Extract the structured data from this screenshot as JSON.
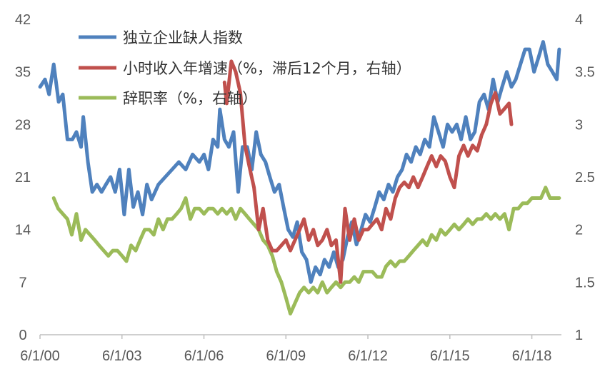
{
  "chart_data": {
    "type": "line",
    "x_labels": [
      "6/1/00",
      "6/1/03",
      "6/1/06",
      "6/1/09",
      "6/1/12",
      "6/1/15",
      "6/1/18"
    ],
    "x_label_dates": [
      2000.417,
      2003.417,
      2006.417,
      2009.417,
      2012.417,
      2015.417,
      2018.417
    ],
    "xlim": [
      2000.417,
      2019.5
    ],
    "y_left": {
      "ticks": [
        "0",
        "7",
        "14",
        "21",
        "28",
        "35",
        "42"
      ],
      "lim": [
        0,
        42
      ]
    },
    "y_right": {
      "ticks": [
        "1",
        "1.5",
        "2",
        "2.5",
        "3",
        "3.5",
        "4"
      ],
      "lim": [
        1,
        4
      ]
    },
    "grid": false,
    "legend_position": "top-left",
    "series": [
      {
        "name": "独立企业缺人指数",
        "color": "#4f81bd",
        "axis": "left",
        "points": [
          [
            2000.42,
            33
          ],
          [
            2000.6,
            34
          ],
          [
            2000.75,
            32
          ],
          [
            2000.92,
            36
          ],
          [
            2001.1,
            31
          ],
          [
            2001.25,
            32
          ],
          [
            2001.42,
            26
          ],
          [
            2001.6,
            26
          ],
          [
            2001.75,
            27
          ],
          [
            2001.92,
            25
          ],
          [
            2002.0,
            29
          ],
          [
            2002.17,
            23
          ],
          [
            2002.33,
            19
          ],
          [
            2002.5,
            20
          ],
          [
            2002.67,
            19
          ],
          [
            2002.83,
            20
          ],
          [
            2003.0,
            21
          ],
          [
            2003.17,
            19
          ],
          [
            2003.33,
            22
          ],
          [
            2003.5,
            16
          ],
          [
            2003.67,
            22
          ],
          [
            2003.83,
            17
          ],
          [
            2004.0,
            19
          ],
          [
            2004.17,
            16
          ],
          [
            2004.33,
            20
          ],
          [
            2004.5,
            18
          ],
          [
            2004.75,
            20
          ],
          [
            2005.0,
            21
          ],
          [
            2005.25,
            22
          ],
          [
            2005.5,
            23
          ],
          [
            2005.75,
            22
          ],
          [
            2006.0,
            24
          ],
          [
            2006.25,
            23
          ],
          [
            2006.42,
            24
          ],
          [
            2006.58,
            22
          ],
          [
            2006.75,
            26
          ],
          [
            2006.92,
            25
          ],
          [
            2007.0,
            30
          ],
          [
            2007.17,
            26
          ],
          [
            2007.33,
            25
          ],
          [
            2007.5,
            27
          ],
          [
            2007.67,
            19
          ],
          [
            2007.83,
            25
          ],
          [
            2008.0,
            25
          ],
          [
            2008.17,
            22
          ],
          [
            2008.33,
            27
          ],
          [
            2008.5,
            24
          ],
          [
            2008.67,
            23
          ],
          [
            2008.83,
            21
          ],
          [
            2009.0,
            19
          ],
          [
            2009.17,
            20
          ],
          [
            2009.33,
            17
          ],
          [
            2009.5,
            14
          ],
          [
            2009.67,
            13
          ],
          [
            2009.83,
            15
          ],
          [
            2010.0,
            11
          ],
          [
            2010.17,
            10
          ],
          [
            2010.33,
            7
          ],
          [
            2010.5,
            9
          ],
          [
            2010.67,
            8
          ],
          [
            2010.83,
            10
          ],
          [
            2011.0,
            9
          ],
          [
            2011.17,
            11
          ],
          [
            2011.33,
            9
          ],
          [
            2011.5,
            10
          ],
          [
            2011.67,
            13
          ],
          [
            2011.83,
            15
          ],
          [
            2012.0,
            12
          ],
          [
            2012.17,
            14
          ],
          [
            2012.33,
            16
          ],
          [
            2012.5,
            15
          ],
          [
            2012.67,
            17
          ],
          [
            2012.83,
            19
          ],
          [
            2013.0,
            18
          ],
          [
            2013.17,
            20
          ],
          [
            2013.33,
            19
          ],
          [
            2013.5,
            21
          ],
          [
            2013.67,
            22
          ],
          [
            2013.83,
            24
          ],
          [
            2014.0,
            23
          ],
          [
            2014.17,
            25
          ],
          [
            2014.33,
            24
          ],
          [
            2014.5,
            26
          ],
          [
            2014.67,
            25
          ],
          [
            2014.83,
            29
          ],
          [
            2015.0,
            27
          ],
          [
            2015.17,
            25
          ],
          [
            2015.33,
            28
          ],
          [
            2015.5,
            27
          ],
          [
            2015.67,
            28
          ],
          [
            2015.83,
            26
          ],
          [
            2016.0,
            29
          ],
          [
            2016.17,
            26
          ],
          [
            2016.33,
            27
          ],
          [
            2016.5,
            31
          ],
          [
            2016.67,
            32
          ],
          [
            2016.83,
            30
          ],
          [
            2017.0,
            34
          ],
          [
            2017.17,
            31
          ],
          [
            2017.33,
            33
          ],
          [
            2017.5,
            35
          ],
          [
            2017.67,
            33
          ],
          [
            2017.83,
            34
          ],
          [
            2018.0,
            36
          ],
          [
            2018.17,
            38
          ],
          [
            2018.33,
            38
          ],
          [
            2018.5,
            35
          ],
          [
            2018.67,
            37
          ],
          [
            2018.83,
            39
          ],
          [
            2019.0,
            36
          ],
          [
            2019.17,
            35
          ],
          [
            2019.33,
            34
          ],
          [
            2019.42,
            38
          ]
        ]
      },
      {
        "name": "小时收入年增速（%，滞后12个月，右轴）",
        "color": "#c0504d",
        "axis": "right",
        "points": [
          [
            2007.17,
            3.4
          ],
          [
            2007.25,
            3.2
          ],
          [
            2007.42,
            3.6
          ],
          [
            2007.58,
            3.5
          ],
          [
            2007.75,
            3.3
          ],
          [
            2007.92,
            2.8
          ],
          [
            2008.08,
            2.6
          ],
          [
            2008.25,
            2.4
          ],
          [
            2008.42,
            2.0
          ],
          [
            2008.58,
            2.2
          ],
          [
            2008.75,
            1.9
          ],
          [
            2008.92,
            1.8
          ],
          [
            2009.08,
            1.8
          ],
          [
            2009.25,
            1.85
          ],
          [
            2009.42,
            1.9
          ],
          [
            2009.58,
            1.8
          ],
          [
            2009.75,
            1.9
          ],
          [
            2009.92,
            2.0
          ],
          [
            2010.08,
            2.1
          ],
          [
            2010.25,
            1.9
          ],
          [
            2010.42,
            2.0
          ],
          [
            2010.58,
            1.85
          ],
          [
            2010.75,
            1.9
          ],
          [
            2010.92,
            2.0
          ],
          [
            2011.08,
            1.85
          ],
          [
            2011.25,
            1.9
          ],
          [
            2011.42,
            1.5
          ],
          [
            2011.58,
            2.2
          ],
          [
            2011.75,
            1.9
          ],
          [
            2011.92,
            2.1
          ],
          [
            2012.08,
            1.9
          ],
          [
            2012.25,
            2.0
          ],
          [
            2012.42,
            2.0
          ],
          [
            2012.58,
            2.05
          ],
          [
            2012.75,
            2.1
          ],
          [
            2012.92,
            2.0
          ],
          [
            2013.08,
            2.2
          ],
          [
            2013.25,
            2.1
          ],
          [
            2013.42,
            2.3
          ],
          [
            2013.58,
            2.4
          ],
          [
            2013.75,
            2.45
          ],
          [
            2013.92,
            2.4
          ],
          [
            2014.08,
            2.5
          ],
          [
            2014.25,
            2.4
          ],
          [
            2014.42,
            2.5
          ],
          [
            2014.58,
            2.6
          ],
          [
            2014.75,
            2.7
          ],
          [
            2014.92,
            2.6
          ],
          [
            2015.08,
            2.7
          ],
          [
            2015.25,
            2.65
          ],
          [
            2015.42,
            2.5
          ],
          [
            2015.58,
            2.4
          ],
          [
            2015.75,
            2.7
          ],
          [
            2015.92,
            2.8
          ],
          [
            2016.08,
            2.7
          ],
          [
            2016.25,
            2.8
          ],
          [
            2016.42,
            2.75
          ],
          [
            2016.58,
            2.9
          ],
          [
            2016.75,
            3.0
          ],
          [
            2016.92,
            3.2
          ],
          [
            2017.08,
            3.3
          ],
          [
            2017.25,
            3.1
          ],
          [
            2017.42,
            3.15
          ],
          [
            2017.58,
            3.2
          ],
          [
            2017.67,
            3.0
          ]
        ]
      },
      {
        "name": "辞职率（%，右轴）",
        "color": "#9bbb59",
        "axis": "right",
        "points": [
          [
            2000.92,
            2.3
          ],
          [
            2001.08,
            2.2
          ],
          [
            2001.25,
            2.15
          ],
          [
            2001.42,
            2.1
          ],
          [
            2001.58,
            1.95
          ],
          [
            2001.75,
            2.15
          ],
          [
            2001.92,
            1.9
          ],
          [
            2002.08,
            2.0
          ],
          [
            2002.25,
            1.95
          ],
          [
            2002.42,
            1.9
          ],
          [
            2002.58,
            1.85
          ],
          [
            2002.75,
            1.8
          ],
          [
            2002.92,
            1.75
          ],
          [
            2003.08,
            1.8
          ],
          [
            2003.25,
            1.8
          ],
          [
            2003.42,
            1.75
          ],
          [
            2003.58,
            1.7
          ],
          [
            2003.75,
            1.85
          ],
          [
            2003.92,
            1.8
          ],
          [
            2004.08,
            1.9
          ],
          [
            2004.25,
            2.0
          ],
          [
            2004.42,
            2.0
          ],
          [
            2004.58,
            1.95
          ],
          [
            2004.75,
            2.1
          ],
          [
            2004.92,
            2.0
          ],
          [
            2005.08,
            2.1
          ],
          [
            2005.25,
            2.1
          ],
          [
            2005.42,
            2.15
          ],
          [
            2005.58,
            2.2
          ],
          [
            2005.75,
            2.3
          ],
          [
            2005.92,
            2.1
          ],
          [
            2006.08,
            2.2
          ],
          [
            2006.25,
            2.2
          ],
          [
            2006.42,
            2.15
          ],
          [
            2006.58,
            2.2
          ],
          [
            2006.75,
            2.2
          ],
          [
            2006.92,
            2.15
          ],
          [
            2007.08,
            2.2
          ],
          [
            2007.25,
            2.15
          ],
          [
            2007.42,
            2.2
          ],
          [
            2007.58,
            2.1
          ],
          [
            2007.75,
            2.2
          ],
          [
            2007.92,
            2.15
          ],
          [
            2008.08,
            2.1
          ],
          [
            2008.25,
            2.05
          ],
          [
            2008.42,
            2.0
          ],
          [
            2008.58,
            1.9
          ],
          [
            2008.75,
            1.85
          ],
          [
            2008.92,
            1.75
          ],
          [
            2009.08,
            1.6
          ],
          [
            2009.25,
            1.5
          ],
          [
            2009.42,
            1.35
          ],
          [
            2009.58,
            1.2
          ],
          [
            2009.75,
            1.3
          ],
          [
            2009.92,
            1.4
          ],
          [
            2010.08,
            1.45
          ],
          [
            2010.25,
            1.4
          ],
          [
            2010.42,
            1.45
          ],
          [
            2010.58,
            1.4
          ],
          [
            2010.75,
            1.5
          ],
          [
            2010.92,
            1.4
          ],
          [
            2011.08,
            1.45
          ],
          [
            2011.25,
            1.5
          ],
          [
            2011.42,
            1.45
          ],
          [
            2011.58,
            1.5
          ],
          [
            2011.75,
            1.5
          ],
          [
            2011.92,
            1.55
          ],
          [
            2012.08,
            1.5
          ],
          [
            2012.25,
            1.6
          ],
          [
            2012.42,
            1.6
          ],
          [
            2012.58,
            1.6
          ],
          [
            2012.75,
            1.55
          ],
          [
            2012.92,
            1.55
          ],
          [
            2013.08,
            1.65
          ],
          [
            2013.25,
            1.7
          ],
          [
            2013.42,
            1.65
          ],
          [
            2013.58,
            1.7
          ],
          [
            2013.75,
            1.7
          ],
          [
            2013.92,
            1.75
          ],
          [
            2014.08,
            1.8
          ],
          [
            2014.25,
            1.85
          ],
          [
            2014.42,
            1.9
          ],
          [
            2014.58,
            1.85
          ],
          [
            2014.75,
            1.95
          ],
          [
            2014.92,
            1.9
          ],
          [
            2015.08,
            2.0
          ],
          [
            2015.25,
            1.95
          ],
          [
            2015.42,
            2.0
          ],
          [
            2015.58,
            2.05
          ],
          [
            2015.75,
            2.0
          ],
          [
            2015.92,
            2.05
          ],
          [
            2016.08,
            2.1
          ],
          [
            2016.25,
            2.05
          ],
          [
            2016.42,
            2.1
          ],
          [
            2016.58,
            2.1
          ],
          [
            2016.75,
            2.15
          ],
          [
            2016.92,
            2.1
          ],
          [
            2017.08,
            2.15
          ],
          [
            2017.25,
            2.1
          ],
          [
            2017.42,
            2.15
          ],
          [
            2017.58,
            2.0
          ],
          [
            2017.75,
            2.2
          ],
          [
            2017.92,
            2.2
          ],
          [
            2018.08,
            2.25
          ],
          [
            2018.25,
            2.25
          ],
          [
            2018.42,
            2.3
          ],
          [
            2018.58,
            2.3
          ],
          [
            2018.75,
            2.3
          ],
          [
            2018.92,
            2.4
          ],
          [
            2019.08,
            2.3
          ],
          [
            2019.25,
            2.3
          ],
          [
            2019.42,
            2.3
          ]
        ]
      }
    ]
  }
}
